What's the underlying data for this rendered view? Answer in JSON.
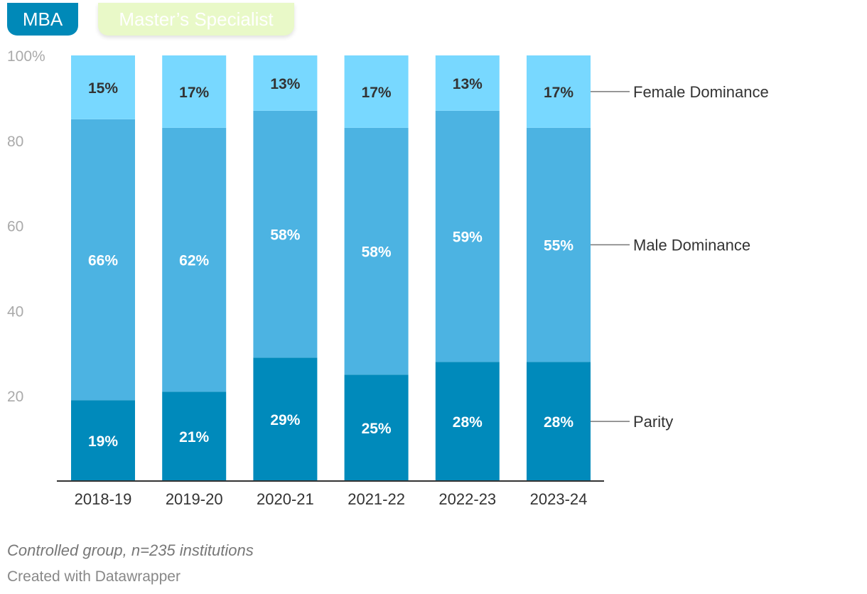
{
  "tabs": [
    {
      "label": "MBA",
      "active": true
    },
    {
      "label": "Master’s Specialist",
      "active": false
    }
  ],
  "colors": {
    "parity": "#008abb",
    "male_dominance": "#4cb3e2",
    "female_dominance": "#78d8ff",
    "tab_active": "#0089b8",
    "tab_inactive": "#e9f9c8"
  },
  "chart_data": {
    "type": "bar",
    "stacked": true,
    "categories": [
      "2018-19",
      "2019-20",
      "2020-21",
      "2021-22",
      "2022-23",
      "2023-24"
    ],
    "series": [
      {
        "name": "Parity",
        "values": [
          19,
          21,
          29,
          25,
          28,
          28
        ]
      },
      {
        "name": "Male Dominance",
        "values": [
          66,
          62,
          58,
          58,
          59,
          55
        ]
      },
      {
        "name": "Female Dominance",
        "values": [
          15,
          17,
          13,
          17,
          13,
          17
        ]
      }
    ],
    "value_labels": [
      [
        "19%",
        "21%",
        "29%",
        "25%",
        "28%",
        "28%"
      ],
      [
        "66%",
        "62%",
        "58%",
        "58%",
        "59%",
        "55%"
      ],
      [
        "15%",
        "17%",
        "13%",
        "17%",
        "13%",
        "17%"
      ]
    ],
    "ylim": [
      0,
      100
    ],
    "yticks": [
      20,
      40,
      60,
      80,
      100
    ],
    "ytick_labels": [
      "20",
      "40",
      "60",
      "80",
      "100%"
    ],
    "legend_position": "right, labels next to last bar"
  },
  "footer": {
    "note": "Controlled group, n=235 institutions",
    "credit": "Created with Datawrapper"
  }
}
